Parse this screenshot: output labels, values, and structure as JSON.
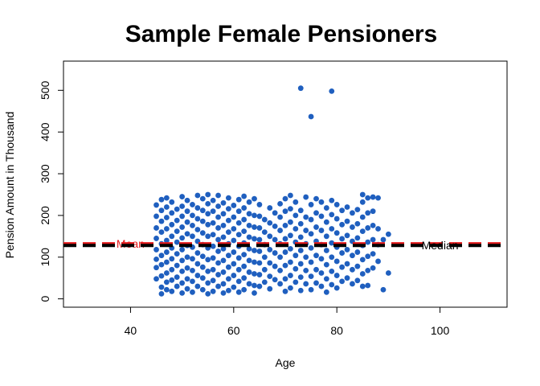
{
  "chart_data": {
    "type": "scatter",
    "title": "Sample Female Pensioners",
    "xlabel": "Age",
    "ylabel": "Pension Amount in Thousand",
    "xlim": [
      27,
      113
    ],
    "ylim": [
      -20,
      570
    ],
    "xticks": [
      40,
      60,
      80,
      100
    ],
    "yticks": [
      0,
      100,
      200,
      300,
      400,
      500
    ],
    "grid": false,
    "point_color": "#1f5fbf",
    "reference_lines": [
      {
        "name": "Mean",
        "y": 132,
        "color": "#e31a1c",
        "style": "dashed",
        "label_x": 40
      },
      {
        "name": "Median",
        "y": 128,
        "color": "#000000",
        "style": "dashed",
        "label_x": 100
      }
    ],
    "points": [
      [
        73,
        505
      ],
      [
        79,
        498
      ],
      [
        75,
        437
      ],
      [
        45,
        225
      ],
      [
        45,
        198
      ],
      [
        45,
        170
      ],
      [
        45,
        145
      ],
      [
        45,
        118
      ],
      [
        45,
        95
      ],
      [
        45,
        75
      ],
      [
        45,
        48
      ],
      [
        46,
        238
      ],
      [
        46,
        212
      ],
      [
        46,
        186
      ],
      [
        46,
        160
      ],
      [
        46,
        132
      ],
      [
        46,
        104
      ],
      [
        46,
        82
      ],
      [
        46,
        55
      ],
      [
        46,
        28
      ],
      [
        46,
        12
      ],
      [
        47,
        242
      ],
      [
        47,
        220
      ],
      [
        47,
        195
      ],
      [
        47,
        168
      ],
      [
        47,
        140
      ],
      [
        47,
        112
      ],
      [
        47,
        88
      ],
      [
        47,
        62
      ],
      [
        47,
        40
      ],
      [
        47,
        22
      ],
      [
        48,
        232
      ],
      [
        48,
        206
      ],
      [
        48,
        178
      ],
      [
        48,
        150
      ],
      [
        48,
        122
      ],
      [
        48,
        96
      ],
      [
        48,
        70
      ],
      [
        48,
        45
      ],
      [
        48,
        18
      ],
      [
        49,
        215
      ],
      [
        49,
        188
      ],
      [
        49,
        162
      ],
      [
        49,
        136
      ],
      [
        49,
        108
      ],
      [
        49,
        80
      ],
      [
        49,
        52
      ],
      [
        49,
        30
      ],
      [
        50,
        245
      ],
      [
        50,
        222
      ],
      [
        50,
        198
      ],
      [
        50,
        172
      ],
      [
        50,
        146
      ],
      [
        50,
        118
      ],
      [
        50,
        92
      ],
      [
        50,
        66
      ],
      [
        50,
        38
      ],
      [
        50,
        14
      ],
      [
        51,
        236
      ],
      [
        51,
        210
      ],
      [
        51,
        184
      ],
      [
        51,
        156
      ],
      [
        51,
        128
      ],
      [
        51,
        100
      ],
      [
        51,
        74
      ],
      [
        51,
        48
      ],
      [
        51,
        24
      ],
      [
        52,
        226
      ],
      [
        52,
        200
      ],
      [
        52,
        176
      ],
      [
        52,
        150
      ],
      [
        52,
        124
      ],
      [
        52,
        96
      ],
      [
        52,
        68
      ],
      [
        52,
        42
      ],
      [
        52,
        16
      ],
      [
        53,
        248
      ],
      [
        53,
        218
      ],
      [
        53,
        192
      ],
      [
        53,
        166
      ],
      [
        53,
        138
      ],
      [
        53,
        110
      ],
      [
        53,
        84
      ],
      [
        53,
        56
      ],
      [
        53,
        30
      ],
      [
        54,
        240
      ],
      [
        54,
        212
      ],
      [
        54,
        186
      ],
      [
        54,
        158
      ],
      [
        54,
        130
      ],
      [
        54,
        102
      ],
      [
        54,
        76
      ],
      [
        54,
        50
      ],
      [
        54,
        22
      ],
      [
        55,
        250
      ],
      [
        55,
        228
      ],
      [
        55,
        204
      ],
      [
        55,
        178
      ],
      [
        55,
        150
      ],
      [
        55,
        122
      ],
      [
        55,
        94
      ],
      [
        55,
        66
      ],
      [
        55,
        38
      ],
      [
        55,
        12
      ],
      [
        56,
        236
      ],
      [
        56,
        210
      ],
      [
        56,
        182
      ],
      [
        56,
        154
      ],
      [
        56,
        126
      ],
      [
        56,
        98
      ],
      [
        56,
        70
      ],
      [
        56,
        44
      ],
      [
        56,
        18
      ],
      [
        57,
        248
      ],
      [
        57,
        222
      ],
      [
        57,
        196
      ],
      [
        57,
        170
      ],
      [
        57,
        142
      ],
      [
        57,
        114
      ],
      [
        57,
        86
      ],
      [
        57,
        58
      ],
      [
        57,
        30
      ],
      [
        58,
        230
      ],
      [
        58,
        204
      ],
      [
        58,
        176
      ],
      [
        58,
        148
      ],
      [
        58,
        120
      ],
      [
        58,
        92
      ],
      [
        58,
        64
      ],
      [
        58,
        36
      ],
      [
        58,
        14
      ],
      [
        59,
        242
      ],
      [
        59,
        216
      ],
      [
        59,
        188
      ],
      [
        59,
        160
      ],
      [
        59,
        132
      ],
      [
        59,
        104
      ],
      [
        59,
        76
      ],
      [
        59,
        48
      ],
      [
        59,
        20
      ],
      [
        60,
        224
      ],
      [
        60,
        196
      ],
      [
        60,
        168
      ],
      [
        60,
        140
      ],
      [
        60,
        112
      ],
      [
        60,
        84
      ],
      [
        60,
        56
      ],
      [
        60,
        28
      ],
      [
        61,
        238
      ],
      [
        61,
        210
      ],
      [
        61,
        182
      ],
      [
        61,
        154
      ],
      [
        61,
        126
      ],
      [
        61,
        98
      ],
      [
        61,
        70
      ],
      [
        61,
        42
      ],
      [
        61,
        16
      ],
      [
        62,
        246
      ],
      [
        62,
        218
      ],
      [
        62,
        190
      ],
      [
        62,
        162
      ],
      [
        62,
        134
      ],
      [
        62,
        106
      ],
      [
        62,
        78
      ],
      [
        62,
        50
      ],
      [
        62,
        22
      ],
      [
        63,
        232
      ],
      [
        63,
        204
      ],
      [
        63,
        176
      ],
      [
        63,
        148
      ],
      [
        63,
        120
      ],
      [
        63,
        92
      ],
      [
        63,
        64
      ],
      [
        63,
        36
      ],
      [
        64,
        240
      ],
      [
        64,
        200
      ],
      [
        64,
        172
      ],
      [
        64,
        144
      ],
      [
        64,
        116
      ],
      [
        64,
        88
      ],
      [
        64,
        60
      ],
      [
        64,
        32
      ],
      [
        64,
        14
      ],
      [
        65,
        226
      ],
      [
        65,
        198
      ],
      [
        65,
        170
      ],
      [
        65,
        142
      ],
      [
        65,
        114
      ],
      [
        65,
        86
      ],
      [
        65,
        58
      ],
      [
        65,
        30
      ],
      [
        66,
        190
      ],
      [
        66,
        160
      ],
      [
        66,
        130
      ],
      [
        66,
        100
      ],
      [
        66,
        70
      ],
      [
        66,
        40
      ],
      [
        67,
        218
      ],
      [
        67,
        182
      ],
      [
        67,
        150
      ],
      [
        67,
        118
      ],
      [
        67,
        86
      ],
      [
        67,
        54
      ],
      [
        67,
        24
      ],
      [
        68,
        206
      ],
      [
        68,
        174
      ],
      [
        68,
        142
      ],
      [
        68,
        110
      ],
      [
        68,
        78
      ],
      [
        68,
        46
      ],
      [
        69,
        228
      ],
      [
        69,
        196
      ],
      [
        69,
        164
      ],
      [
        69,
        132
      ],
      [
        69,
        100
      ],
      [
        69,
        68
      ],
      [
        69,
        36
      ],
      [
        70,
        240
      ],
      [
        70,
        210
      ],
      [
        70,
        176
      ],
      [
        70,
        144
      ],
      [
        70,
        112
      ],
      [
        70,
        80
      ],
      [
        70,
        48
      ],
      [
        70,
        18
      ],
      [
        71,
        248
      ],
      [
        71,
        216
      ],
      [
        71,
        184
      ],
      [
        71,
        152
      ],
      [
        71,
        120
      ],
      [
        71,
        88
      ],
      [
        71,
        56
      ],
      [
        71,
        26
      ],
      [
        72,
        232
      ],
      [
        72,
        200
      ],
      [
        72,
        168
      ],
      [
        72,
        136
      ],
      [
        72,
        104
      ],
      [
        72,
        72
      ],
      [
        72,
        40
      ],
      [
        73,
        212
      ],
      [
        73,
        180
      ],
      [
        73,
        148
      ],
      [
        73,
        116
      ],
      [
        73,
        84
      ],
      [
        73,
        52
      ],
      [
        73,
        20
      ],
      [
        74,
        244
      ],
      [
        74,
        196
      ],
      [
        74,
        164
      ],
      [
        74,
        132
      ],
      [
        74,
        100
      ],
      [
        74,
        68
      ],
      [
        74,
        36
      ],
      [
        75,
        226
      ],
      [
        75,
        190
      ],
      [
        75,
        156
      ],
      [
        75,
        122
      ],
      [
        75,
        88
      ],
      [
        75,
        54
      ],
      [
        75,
        22
      ],
      [
        76,
        240
      ],
      [
        76,
        206
      ],
      [
        76,
        172
      ],
      [
        76,
        138
      ],
      [
        76,
        104
      ],
      [
        76,
        70
      ],
      [
        76,
        38
      ],
      [
        77,
        232
      ],
      [
        77,
        198
      ],
      [
        77,
        164
      ],
      [
        77,
        130
      ],
      [
        77,
        96
      ],
      [
        77,
        62
      ],
      [
        77,
        30
      ],
      [
        78,
        218
      ],
      [
        78,
        184
      ],
      [
        78,
        150
      ],
      [
        78,
        116
      ],
      [
        78,
        82
      ],
      [
        78,
        48
      ],
      [
        78,
        16
      ],
      [
        79,
        236
      ],
      [
        79,
        202
      ],
      [
        79,
        168
      ],
      [
        79,
        134
      ],
      [
        79,
        100
      ],
      [
        79,
        66
      ],
      [
        79,
        34
      ],
      [
        80,
        226
      ],
      [
        80,
        192
      ],
      [
        80,
        158
      ],
      [
        80,
        124
      ],
      [
        80,
        90
      ],
      [
        80,
        56
      ],
      [
        80,
        26
      ],
      [
        81,
        212
      ],
      [
        81,
        178
      ],
      [
        81,
        144
      ],
      [
        81,
        110
      ],
      [
        81,
        76
      ],
      [
        81,
        42
      ],
      [
        82,
        220
      ],
      [
        82,
        186
      ],
      [
        82,
        152
      ],
      [
        82,
        118
      ],
      [
        82,
        84
      ],
      [
        82,
        50
      ],
      [
        83,
        206
      ],
      [
        83,
        172
      ],
      [
        83,
        138
      ],
      [
        83,
        104
      ],
      [
        83,
        70
      ],
      [
        83,
        36
      ],
      [
        84,
        214
      ],
      [
        84,
        180
      ],
      [
        84,
        146
      ],
      [
        84,
        112
      ],
      [
        84,
        78
      ],
      [
        84,
        44
      ],
      [
        85,
        250
      ],
      [
        85,
        232
      ],
      [
        85,
        196
      ],
      [
        85,
        162
      ],
      [
        85,
        128
      ],
      [
        85,
        94
      ],
      [
        85,
        60
      ],
      [
        85,
        30
      ],
      [
        86,
        242
      ],
      [
        86,
        206
      ],
      [
        86,
        170
      ],
      [
        86,
        136
      ],
      [
        86,
        102
      ],
      [
        86,
        68
      ],
      [
        86,
        32
      ],
      [
        87,
        244
      ],
      [
        87,
        210
      ],
      [
        87,
        176
      ],
      [
        87,
        142
      ],
      [
        87,
        108
      ],
      [
        87,
        74
      ],
      [
        88,
        242
      ],
      [
        88,
        168
      ],
      [
        88,
        130
      ],
      [
        88,
        90
      ],
      [
        89,
        22
      ],
      [
        89,
        142
      ],
      [
        90,
        155
      ],
      [
        90,
        62
      ]
    ]
  }
}
